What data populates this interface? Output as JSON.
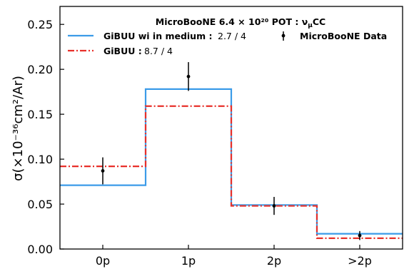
{
  "chart_data": {
    "type": "step",
    "categories": [
      "0p",
      "1p",
      "2p",
      ">2p"
    ],
    "ylabel": "σ(×10⁻³⁶cm²/Ar)",
    "ylim": [
      0,
      0.27
    ],
    "yticks": [
      "0.00",
      "0.05",
      "0.10",
      "0.15",
      "0.20",
      "0.25"
    ],
    "legend_title": "MicroBooNE 6.4 × 10²⁰ POT : ν",
    "legend_title_sub": "μ",
    "legend_title_tail": "CC",
    "legend_placement": "top",
    "series": [
      {
        "name": "GiBUU wi in medium :",
        "score": "2.7 / 4",
        "style": "solid",
        "color": "#3b9be8",
        "values": [
          0.071,
          0.178,
          0.049,
          0.017
        ]
      },
      {
        "name": "GiBUU :",
        "score": "8.7 / 4",
        "style": "dashdot",
        "color": "#e8302a",
        "values": [
          0.092,
          0.159,
          0.048,
          0.012
        ]
      }
    ],
    "data": {
      "name": "MicroBooNE Data",
      "color": "#000000",
      "values": [
        0.087,
        0.192,
        0.048,
        0.015
      ],
      "errors": [
        0.015,
        0.016,
        0.01,
        0.005
      ]
    }
  }
}
